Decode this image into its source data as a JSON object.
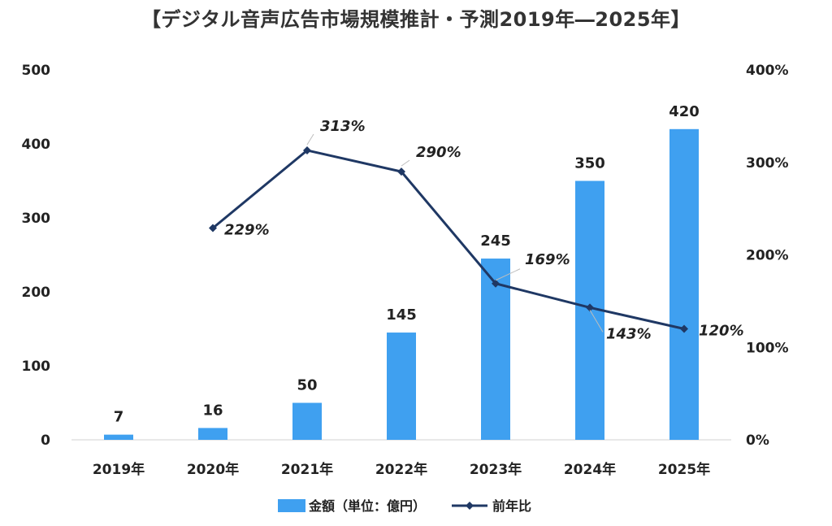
{
  "chart_data": {
    "type": "bar",
    "title": "【デジタル音声広告市場規模推計・予測2019年―2025年】",
    "categories": [
      "2019年",
      "2020年",
      "2021年",
      "2022年",
      "2023年",
      "2024年",
      "2025年"
    ],
    "series": [
      {
        "name": "金額（単位：億円）",
        "type": "bar",
        "axis": "left",
        "values": [
          7,
          16,
          50,
          145,
          245,
          350,
          420
        ],
        "color": "#3fa0f0"
      },
      {
        "name": "前年比",
        "type": "line",
        "axis": "right",
        "values": [
          null,
          229,
          313,
          290,
          169,
          143,
          120
        ],
        "labels": [
          "",
          "229%",
          "313%",
          "290%",
          "169%",
          "143%",
          "120%"
        ],
        "color": "#1f3864"
      }
    ],
    "y_left": {
      "range": [
        0,
        500
      ],
      "ticks": [
        "0",
        "100",
        "200",
        "300",
        "400",
        "500"
      ]
    },
    "y_right": {
      "range": [
        0,
        400
      ],
      "ticks": [
        "0%",
        "100%",
        "200%",
        "300%",
        "400%"
      ]
    },
    "bar_labels": [
      "7",
      "16",
      "50",
      "145",
      "245",
      "350",
      "420"
    ],
    "grid": false,
    "legend_position": "bottom"
  }
}
